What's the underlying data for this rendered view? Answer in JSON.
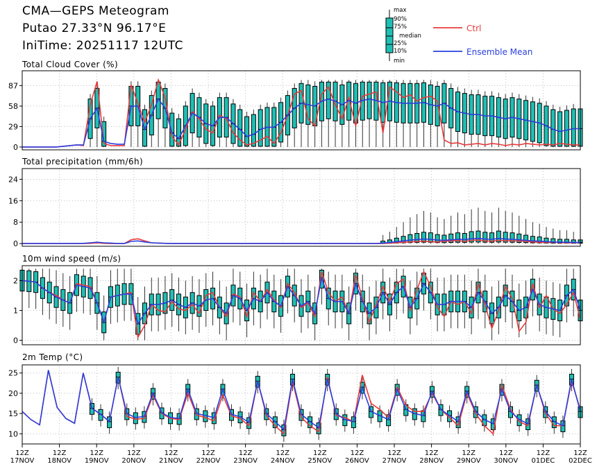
{
  "header": {
    "title": "CMA—GEPS Meteogram",
    "location": "Putao 27.33°N 96.17°E",
    "init_time": "IniTime: 20251117 12UTC"
  },
  "legend": {
    "box_labels": [
      "max",
      "90%",
      "75%",
      "median",
      "25%",
      "10%",
      "min"
    ],
    "ctrl_label": "Ctrl",
    "mean_label": "Ensemble Mean",
    "ctrl_color": "#e8393a",
    "mean_color": "#2a3fe0",
    "box_color": "#1fbfb4"
  },
  "x_axis": {
    "ticks": [
      {
        "top": "12Z",
        "bottom": "17NOV"
      },
      {
        "top": "12Z",
        "bottom": "18NOV"
      },
      {
        "top": "12Z",
        "bottom": "19NOV"
      },
      {
        "top": "12Z",
        "bottom": "20NOV"
      },
      {
        "top": "12Z",
        "bottom": "21NOV"
      },
      {
        "top": "12Z",
        "bottom": "22NOV"
      },
      {
        "top": "12Z",
        "bottom": "23NOV"
      },
      {
        "top": "12Z",
        "bottom": "24NOV"
      },
      {
        "top": "12Z",
        "bottom": "25NOV"
      },
      {
        "top": "12Z",
        "bottom": "26NOV"
      },
      {
        "top": "12Z",
        "bottom": "27NOV"
      },
      {
        "top": "12Z",
        "bottom": "28NOV"
      },
      {
        "top": "12Z",
        "bottom": "29NOV"
      },
      {
        "top": "12Z",
        "bottom": "30NOV"
      },
      {
        "top": "12Z",
        "bottom": "01DEC"
      },
      {
        "top": "12Z",
        "bottom": "02DEC"
      }
    ]
  },
  "chart_data": [
    {
      "type": "box",
      "title": "Total Cloud Cover (%)",
      "ylim": [
        -4,
        108
      ],
      "yticks": [
        0,
        29,
        58,
        87
      ],
      "ctrl": [
        0,
        0,
        0,
        0,
        0,
        0,
        1,
        2,
        3,
        2,
        60,
        93,
        5,
        2,
        2,
        2,
        88,
        62,
        35,
        60,
        95,
        70,
        15,
        3,
        25,
        50,
        40,
        25,
        20,
        45,
        40,
        20,
        10,
        3,
        5,
        10,
        15,
        5,
        20,
        45,
        75,
        80,
        40,
        30,
        75,
        85,
        60,
        40,
        70,
        30,
        72,
        75,
        78,
        20,
        85,
        78,
        70,
        74,
        65,
        70,
        72,
        65,
        10,
        5,
        6,
        3,
        4,
        5,
        3,
        5,
        4,
        2,
        4,
        3,
        5,
        4,
        3,
        4,
        3,
        5,
        4,
        3,
        3
      ],
      "mean": [
        0,
        0,
        0,
        0,
        0,
        0,
        1,
        2,
        3,
        3,
        40,
        55,
        8,
        5,
        4,
        4,
        58,
        58,
        25,
        45,
        68,
        55,
        20,
        12,
        30,
        48,
        42,
        33,
        30,
        42,
        42,
        33,
        25,
        15,
        18,
        25,
        28,
        28,
        35,
        45,
        55,
        62,
        60,
        58,
        65,
        68,
        65,
        60,
        66,
        62,
        66,
        68,
        66,
        63,
        65,
        63,
        62,
        62,
        62,
        63,
        60,
        58,
        62,
        55,
        50,
        48,
        46,
        46,
        44,
        44,
        42,
        40,
        42,
        40,
        38,
        36,
        34,
        30,
        25,
        22,
        24,
        26,
        26
      ],
      "box_range": [
        9,
        82
      ]
    },
    {
      "type": "box",
      "title": "Total precipitation (mm/6h)",
      "ylim": [
        -1,
        28
      ],
      "yticks": [
        0,
        8,
        16,
        24
      ],
      "ctrl": [
        0,
        0,
        0,
        0,
        0,
        0,
        0,
        0,
        0,
        0,
        0.1,
        0.3,
        0.1,
        0,
        0,
        0,
        1.4,
        1.8,
        1.0,
        0.3,
        0.2,
        0.1,
        0,
        0,
        0,
        0,
        0,
        0,
        0,
        0,
        0,
        0,
        0,
        0,
        0,
        0,
        0,
        0,
        0,
        0,
        0,
        0,
        0,
        0,
        0,
        0,
        0,
        0,
        0,
        0,
        0,
        0,
        0,
        0,
        0.2,
        0.3,
        0.5,
        0.6,
        0.8,
        0.9,
        0.7,
        0.6,
        0.9,
        1.0,
        1.1,
        0.8,
        1.2,
        1.3,
        1.0,
        0.9,
        1.2,
        1.1,
        1.0,
        1.0,
        0.8,
        0.6,
        0.5,
        0.4,
        0.5,
        0.4,
        0.3,
        0.3,
        0.3
      ],
      "mean": [
        0,
        0,
        0,
        0,
        0,
        0,
        0,
        0,
        0,
        0.1,
        0.3,
        0.5,
        0.3,
        0.2,
        0,
        0,
        0.8,
        1.0,
        0.6,
        0.3,
        0.2,
        0.1,
        0,
        0,
        0,
        0,
        0,
        0,
        0,
        0,
        0,
        0,
        0,
        0,
        0,
        0,
        0,
        0,
        0,
        0,
        0,
        0,
        0,
        0,
        0,
        0,
        0,
        0,
        0,
        0,
        0,
        0,
        0,
        0.2,
        0.4,
        0.7,
        1.0,
        1.3,
        1.5,
        1.7,
        1.6,
        1.3,
        1.2,
        1.4,
        1.6,
        1.5,
        1.8,
        1.9,
        1.7,
        1.6,
        1.9,
        1.7,
        1.6,
        1.4,
        1.2,
        1.0,
        0.9,
        0.7,
        0.6,
        0.5,
        0.5,
        0.4,
        0.4
      ],
      "box_range": [
        53,
        82
      ]
    },
    {
      "type": "box",
      "title": "10m wind speed (m/s)",
      "ylim": [
        -0.15,
        2.5
      ],
      "yticks": [
        0,
        1,
        2
      ],
      "ctrl": [
        2.0,
        1.98,
        1.95,
        1.75,
        1.6,
        1.5,
        1.35,
        1.25,
        1.9,
        1.85,
        1.8,
        1.25,
        0.6,
        1.45,
        1.5,
        1.55,
        1.6,
        0.1,
        0.5,
        1.2,
        1.0,
        0.95,
        1.3,
        1.05,
        1.0,
        1.2,
        0.9,
        1.5,
        1.6,
        1.1,
        0.8,
        1.55,
        1.45,
        0.8,
        1.6,
        1.3,
        1.7,
        1.35,
        1.1,
        1.9,
        1.6,
        1.1,
        1.25,
        0.8,
        2.3,
        1.6,
        1.3,
        1.45,
        0.9,
        2.2,
        1.4,
        0.6,
        1.2,
        1.8,
        1.3,
        1.9,
        2.05,
        1.0,
        1.7,
        2.3,
        1.8,
        1.1,
        0.8,
        1.3,
        1.2,
        1.3,
        0.9,
        1.9,
        1.2,
        0.4,
        1.0,
        1.8,
        1.4,
        0.3,
        0.6,
        1.9,
        1.1,
        1.5,
        1.05,
        0.9,
        1.2,
        1.6,
        0.7
      ],
      "mean": [
        2.0,
        1.98,
        1.95,
        1.75,
        1.6,
        1.45,
        1.35,
        1.25,
        1.85,
        1.8,
        1.75,
        1.25,
        0.6,
        1.45,
        1.5,
        1.55,
        1.55,
        0.55,
        0.9,
        1.2,
        1.2,
        1.25,
        1.35,
        1.2,
        1.1,
        1.25,
        1.15,
        1.35,
        1.4,
        1.1,
        0.9,
        1.5,
        1.4,
        1.0,
        1.4,
        1.3,
        1.6,
        1.3,
        1.15,
        1.8,
        1.5,
        1.15,
        1.3,
        0.9,
        2.1,
        1.4,
        1.3,
        1.3,
        0.9,
        1.9,
        1.3,
        0.9,
        1.1,
        1.6,
        1.2,
        1.6,
        1.8,
        1.1,
        1.4,
        1.9,
        1.6,
        1.2,
        1.2,
        1.3,
        1.3,
        1.3,
        1.1,
        1.6,
        1.3,
        0.9,
        1.1,
        1.5,
        1.3,
        1.0,
        1.1,
        1.7,
        1.2,
        1.1,
        1.05,
        1.0,
        1.5,
        1.7,
        1.0
      ],
      "box_range": [
        0,
        82
      ]
    },
    {
      "type": "box",
      "title": "2m Temp (°C)",
      "ylim": [
        7.5,
        27
      ],
      "yticks": [
        10,
        15,
        20,
        25
      ],
      "ctrl": [
        15.5,
        13.5,
        12.2,
        25.7,
        16.5,
        13.8,
        12.6,
        25.0,
        16.3,
        14.8,
        13.0,
        24.0,
        14.3,
        13.6,
        13.8,
        19.5,
        15.0,
        13.8,
        13.5,
        20.0,
        14.6,
        14.0,
        13.2,
        19.6,
        14.4,
        13.8,
        12.0,
        23.0,
        14.5,
        12.0,
        10.0,
        23.0,
        14.0,
        12.0,
        10.5,
        24.0,
        14.5,
        14.0,
        13.0,
        24.5,
        17.5,
        16.0,
        14.0,
        21.5,
        17.0,
        15.5,
        15.5,
        20.0,
        16.0,
        14.0,
        12.0,
        20.0,
        15.0,
        12.0,
        10.0,
        22.0,
        16.0,
        13.0,
        12.0,
        22.0,
        15.0,
        12.0,
        12.0,
        23.0,
        16.0
      ],
      "mean": [
        15.5,
        13.5,
        12.2,
        25.7,
        16.5,
        13.8,
        12.6,
        25.0,
        16.3,
        14.8,
        13.0,
        24.0,
        15.0,
        14.0,
        14.3,
        20.0,
        15.2,
        14.0,
        13.8,
        21.0,
        15.0,
        14.5,
        14.0,
        21.0,
        14.8,
        14.2,
        12.8,
        23.0,
        15.0,
        13.0,
        11.0,
        23.5,
        14.8,
        13.0,
        11.5,
        23.5,
        15.0,
        13.5,
        13.0,
        21.5,
        15.5,
        14.5,
        13.5,
        21.0,
        16.0,
        15.0,
        14.5,
        20.5,
        16.0,
        14.5,
        13.0,
        20.5,
        15.5,
        13.5,
        12.5,
        21.0,
        15.5,
        13.5,
        12.5,
        22.0,
        15.5,
        13.0,
        12.0,
        23.5,
        15.5
      ],
      "box_range": [
        8,
        64
      ]
    }
  ]
}
